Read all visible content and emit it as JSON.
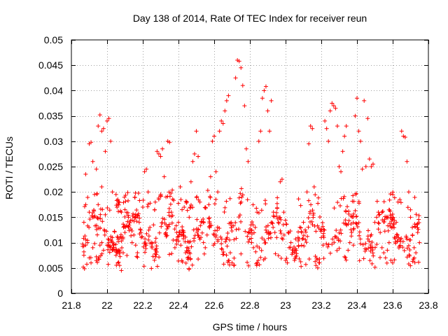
{
  "chart_data": {
    "type": "scatter",
    "title": "Day 138 of 2014, Rate Of TEC Index for receiver reun",
    "xlabel": "GPS time / hours",
    "ylabel": "ROTI / TECUs",
    "xlim": [
      21.8,
      23.8
    ],
    "ylim": [
      0,
      0.05
    ],
    "xticks": [
      21.8,
      22.0,
      22.2,
      22.4,
      22.6,
      22.8,
      23.0,
      23.2,
      23.4,
      23.6,
      23.8
    ],
    "xtick_labels": [
      "21.8",
      "22",
      "22.2",
      "22.4",
      "22.6",
      "22.8",
      "23",
      "23.2",
      "23.4",
      "23.6",
      "23.8"
    ],
    "yticks": [
      0,
      0.005,
      0.01,
      0.015,
      0.02,
      0.025,
      0.03,
      0.035,
      0.04,
      0.045,
      0.05
    ],
    "ytick_labels": [
      "0",
      "0.005",
      "0.01",
      "0.015",
      "0.02",
      "0.025",
      "0.03",
      "0.035",
      "0.04",
      "0.045",
      "0.05"
    ],
    "grid": true,
    "marker": "+",
    "marker_color": "#ff0000",
    "series": [
      {
        "name": "ROTI",
        "points": [
          [
            21.87,
            0.0075
          ],
          [
            21.88,
            0.0095
          ],
          [
            21.89,
            0.01
          ],
          [
            21.9,
            0.007
          ],
          [
            21.91,
            0.006
          ],
          [
            21.92,
            0.009
          ],
          [
            21.93,
            0.0098
          ],
          [
            21.94,
            0.0072
          ],
          [
            21.95,
            0.0068
          ],
          [
            21.96,
            0.0095
          ],
          [
            21.97,
            0.01
          ],
          [
            21.98,
            0.0085
          ],
          [
            21.87,
            0.014
          ],
          [
            21.88,
            0.0175
          ],
          [
            21.9,
            0.016
          ],
          [
            21.92,
            0.015
          ],
          [
            21.93,
            0.0195
          ],
          [
            21.95,
            0.0175
          ],
          [
            21.97,
            0.021
          ],
          [
            21.99,
            0.0155
          ],
          [
            21.88,
            0.0235
          ],
          [
            21.9,
            0.0295
          ],
          [
            21.91,
            0.0298
          ],
          [
            21.92,
            0.026
          ],
          [
            21.94,
            0.0245
          ],
          [
            21.95,
            0.033
          ],
          [
            21.96,
            0.0352
          ],
          [
            21.97,
            0.032
          ],
          [
            21.98,
            0.0325
          ],
          [
            21.99,
            0.028
          ],
          [
            22.0,
            0.0095
          ],
          [
            22.01,
            0.01
          ],
          [
            22.02,
            0.009
          ],
          [
            22.03,
            0.011
          ],
          [
            22.04,
            0.0085
          ],
          [
            22.05,
            0.0075
          ],
          [
            22.06,
            0.006
          ],
          [
            22.07,
            0.0055
          ],
          [
            22.08,
            0.0045
          ],
          [
            22.09,
            0.008
          ],
          [
            22.1,
            0.012
          ],
          [
            22.12,
            0.013
          ],
          [
            22.0,
            0.034
          ],
          [
            22.01,
            0.0345
          ],
          [
            22.02,
            0.03
          ],
          [
            22.03,
            0.02
          ],
          [
            22.05,
            0.0195
          ],
          [
            22.06,
            0.0185
          ],
          [
            22.08,
            0.016
          ],
          [
            22.1,
            0.0165
          ],
          [
            22.12,
            0.015
          ],
          [
            22.14,
            0.01
          ],
          [
            22.15,
            0.0115
          ],
          [
            22.16,
            0.0095
          ],
          [
            22.17,
            0.008
          ],
          [
            22.18,
            0.014
          ],
          [
            22.19,
            0.012
          ],
          [
            22.2,
            0.017
          ],
          [
            22.21,
            0.024
          ],
          [
            22.22,
            0.0245
          ],
          [
            22.23,
            0.02
          ],
          [
            22.24,
            0.013
          ],
          [
            22.25,
            0.01
          ],
          [
            22.26,
            0.0135
          ],
          [
            22.27,
            0.018
          ],
          [
            22.28,
            0.028
          ],
          [
            22.29,
            0.0275
          ],
          [
            22.3,
            0.027
          ],
          [
            22.31,
            0.0285
          ],
          [
            22.32,
            0.023
          ],
          [
            22.33,
            0.019
          ],
          [
            22.34,
            0.03
          ],
          [
            22.35,
            0.0298
          ],
          [
            22.36,
            0.016
          ],
          [
            22.37,
            0.0105
          ],
          [
            22.38,
            0.009
          ],
          [
            22.39,
            0.012
          ],
          [
            22.4,
            0.014
          ],
          [
            22.41,
            0.021
          ],
          [
            22.42,
            0.0165
          ],
          [
            22.43,
            0.012
          ],
          [
            22.44,
            0.008
          ],
          [
            22.45,
            0.007
          ],
          [
            22.46,
            0.015
          ],
          [
            22.47,
            0.022
          ],
          [
            22.48,
            0.026
          ],
          [
            22.49,
            0.0275
          ],
          [
            22.5,
            0.032
          ],
          [
            22.51,
            0.027
          ],
          [
            22.52,
            0.018
          ],
          [
            22.53,
            0.014
          ],
          [
            22.54,
            0.01
          ],
          [
            22.55,
            0.009
          ],
          [
            22.56,
            0.0115
          ],
          [
            22.57,
            0.0175
          ],
          [
            22.58,
            0.023
          ],
          [
            22.59,
            0.03
          ],
          [
            22.6,
            0.031
          ],
          [
            22.61,
            0.024
          ],
          [
            22.62,
            0.02
          ],
          [
            22.63,
            0.032
          ],
          [
            22.64,
            0.034
          ],
          [
            22.65,
            0.0335
          ],
          [
            22.66,
            0.036
          ],
          [
            22.67,
            0.038
          ],
          [
            22.68,
            0.039
          ],
          [
            22.69,
            0.008
          ],
          [
            22.7,
            0.006
          ],
          [
            22.71,
            0.0055
          ],
          [
            22.72,
            0.0425
          ],
          [
            22.73,
            0.046
          ],
          [
            22.74,
            0.0458
          ],
          [
            22.75,
            0.0445
          ],
          [
            22.76,
            0.041
          ],
          [
            22.77,
            0.037
          ],
          [
            22.78,
            0.0285
          ],
          [
            22.79,
            0.026
          ],
          [
            22.8,
            0.012
          ],
          [
            22.81,
            0.01
          ],
          [
            22.82,
            0.009
          ],
          [
            22.83,
            0.013
          ],
          [
            22.84,
            0.016
          ],
          [
            22.85,
            0.03
          ],
          [
            22.86,
            0.032
          ],
          [
            22.87,
            0.0385
          ],
          [
            22.88,
            0.04
          ],
          [
            22.89,
            0.0408
          ],
          [
            22.9,
            0.036
          ],
          [
            22.91,
            0.032
          ],
          [
            22.92,
            0.038
          ],
          [
            22.93,
            0.013
          ],
          [
            22.94,
            0.012
          ],
          [
            22.95,
            0.011
          ],
          [
            22.96,
            0.014
          ],
          [
            22.97,
            0.022
          ],
          [
            22.98,
            0.0225
          ],
          [
            22.99,
            0.016
          ],
          [
            23.0,
            0.0065
          ],
          [
            23.01,
            0.006
          ],
          [
            23.02,
            0.009
          ],
          [
            23.03,
            0.01
          ],
          [
            23.04,
            0.008
          ],
          [
            23.05,
            0.0065
          ],
          [
            23.06,
            0.0085
          ],
          [
            23.07,
            0.011
          ],
          [
            23.08,
            0.013
          ],
          [
            23.09,
            0.012
          ],
          [
            23.1,
            0.014
          ],
          [
            23.11,
            0.0125
          ],
          [
            23.12,
            0.02
          ],
          [
            23.13,
            0.0295
          ],
          [
            23.14,
            0.033
          ],
          [
            23.15,
            0.0325
          ],
          [
            23.16,
            0.021
          ],
          [
            23.17,
            0.0055
          ],
          [
            23.18,
            0.005
          ],
          [
            23.19,
            0.006
          ],
          [
            23.2,
            0.011
          ],
          [
            23.21,
            0.0095
          ],
          [
            23.22,
            0.034
          ],
          [
            23.23,
            0.0325
          ],
          [
            23.24,
            0.03
          ],
          [
            23.25,
            0.036
          ],
          [
            23.26,
            0.0375
          ],
          [
            23.27,
            0.037
          ],
          [
            23.28,
            0.0365
          ],
          [
            23.29,
            0.033
          ],
          [
            23.3,
            0.025
          ],
          [
            23.31,
            0.024
          ],
          [
            23.32,
            0.028
          ],
          [
            23.33,
            0.031
          ],
          [
            23.34,
            0.033
          ],
          [
            23.35,
            0.0085
          ],
          [
            23.36,
            0.01
          ],
          [
            23.37,
            0.012
          ],
          [
            23.38,
            0.0095
          ],
          [
            23.39,
            0.035
          ],
          [
            23.4,
            0.0385
          ],
          [
            23.41,
            0.032
          ],
          [
            23.42,
            0.03
          ],
          [
            23.43,
            0.0245
          ],
          [
            23.44,
            0.038
          ],
          [
            23.45,
            0.025
          ],
          [
            23.46,
            0.0345
          ],
          [
            23.47,
            0.0265
          ],
          [
            23.48,
            0.025
          ],
          [
            23.49,
            0.0255
          ],
          [
            23.5,
            0.014
          ],
          [
            23.51,
            0.015
          ],
          [
            23.52,
            0.016
          ],
          [
            23.53,
            0.012
          ],
          [
            23.54,
            0.009
          ],
          [
            23.55,
            0.008
          ],
          [
            23.56,
            0.007
          ],
          [
            23.57,
            0.0085
          ],
          [
            23.58,
            0.01
          ],
          [
            23.59,
            0.0065
          ],
          [
            23.6,
            0.006
          ],
          [
            23.61,
            0.011
          ],
          [
            23.62,
            0.014
          ],
          [
            23.63,
            0.018
          ],
          [
            23.64,
            0.0185
          ],
          [
            23.65,
            0.032
          ],
          [
            23.66,
            0.031
          ],
          [
            23.67,
            0.0308
          ],
          [
            23.68,
            0.026
          ],
          [
            23.69,
            0.02
          ],
          [
            23.7,
            0.015
          ],
          [
            23.71,
            0.013
          ],
          [
            23.72,
            0.009
          ],
          [
            23.73,
            0.008
          ],
          [
            23.74,
            0.012
          ],
          [
            23.75,
            0.01
          ]
        ],
        "bands": [
          {
            "x0": 21.86,
            "x1": 23.75,
            "ylo": 0.0075,
            "yhi": 0.0165,
            "count": 560,
            "jitter": 0.002
          },
          {
            "x0": 21.86,
            "x1": 23.75,
            "ylo": 0.0165,
            "yhi": 0.02,
            "count": 110,
            "jitter": 0.001
          },
          {
            "x0": 21.86,
            "x1": 23.75,
            "ylo": 0.005,
            "yhi": 0.0075,
            "count": 80,
            "jitter": 0.0008
          }
        ]
      }
    ]
  }
}
